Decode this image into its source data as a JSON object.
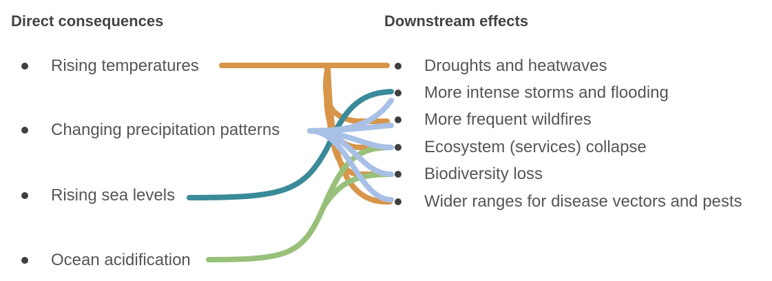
{
  "headings": {
    "left": "Direct consequences",
    "right": "Downstream effects"
  },
  "causes": [
    {
      "label": "Rising temperatures"
    },
    {
      "label": "Changing precipitation patterns"
    },
    {
      "label": "Rising sea levels"
    },
    {
      "label": "Ocean acidification"
    }
  ],
  "effects": [
    {
      "label": "Droughts and heatwaves"
    },
    {
      "label": "More intense storms and flooding"
    },
    {
      "label": "More frequent wildfires"
    },
    {
      "label": "Ecosystem (services) collapse"
    },
    {
      "label": "Biodiversity loss"
    },
    {
      "label": "Wider ranges for disease vectors and pests"
    }
  ],
  "colors": {
    "rising_temperatures": "#d8954a",
    "changing_precipitation": "#a9c0e6",
    "rising_sea_levels": "#3a8a99",
    "ocean_acidification": "#98c07a"
  }
}
